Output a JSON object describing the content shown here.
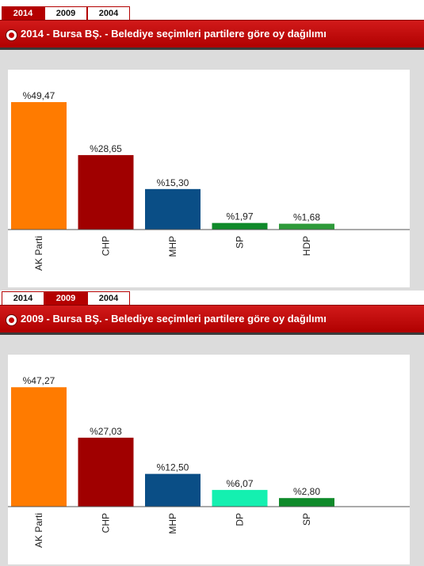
{
  "colors": {
    "accent": "#b40000",
    "plot_background": "#ffffff",
    "panel_background": "#dcdcdc",
    "AK Parti": "#ff7b00",
    "CHP": "#a00000",
    "MHP": "#0a4e86",
    "SP": "#0f8a2a",
    "HDP": "#2e9a3a",
    "DP": "#14f0b0"
  },
  "panels": [
    {
      "tabs": [
        {
          "label": "2014",
          "active": true
        },
        {
          "label": "2009",
          "active": false
        },
        {
          "label": "2004",
          "active": false
        }
      ],
      "title": "2014 - Bursa BŞ. - Belediye seçimleri partilere göre oy dağılımı",
      "title_icon": "record-icon"
    },
    {
      "tabs": [
        {
          "label": "2014",
          "active": false
        },
        {
          "label": "2009",
          "active": true
        },
        {
          "label": "2004",
          "active": false
        }
      ],
      "title": "2009 - Bursa BŞ. - Belediye seçimleri partilere göre oy dağılımı",
      "title_icon": "record-icon"
    }
  ],
  "chart_data": [
    {
      "type": "bar",
      "title": "2014 - Bursa BŞ. - Belediye seçimleri partilere göre oy dağılımı",
      "categories": [
        "AK Parti",
        "CHP",
        "MHP",
        "SP",
        "HDP"
      ],
      "values": [
        49.47,
        28.65,
        15.3,
        1.97,
        1.68
      ],
      "data_labels": [
        "%49,47",
        "%28,65",
        "%15,30",
        "%1,97",
        "%1,68"
      ],
      "bar_colors": [
        "#ff7b00",
        "#a00000",
        "#0a4e86",
        "#0f8a2a",
        "#2e9a3a"
      ],
      "xlabel": "",
      "ylabel": "",
      "ylim": [
        0,
        56
      ],
      "x_tick_rotation": -90,
      "grid": false,
      "legend": "none"
    },
    {
      "type": "bar",
      "title": "2009 - Bursa BŞ. - Belediye seçimleri partilere göre oy dağılımı",
      "categories": [
        "AK Parti",
        "CHP",
        "MHP",
        "DP",
        "SP"
      ],
      "values": [
        47.27,
        27.03,
        12.5,
        6.07,
        2.8
      ],
      "data_labels": [
        "%47,27",
        "%27,03",
        "%12,50",
        "%6,07",
        "%2,80"
      ],
      "bar_colors": [
        "#ff7b00",
        "#a00000",
        "#0a4e86",
        "#14f0b0",
        "#0f8a2a"
      ],
      "xlabel": "",
      "ylabel": "",
      "ylim": [
        0,
        54
      ],
      "x_tick_rotation": -90,
      "grid": false,
      "legend": "none"
    }
  ]
}
